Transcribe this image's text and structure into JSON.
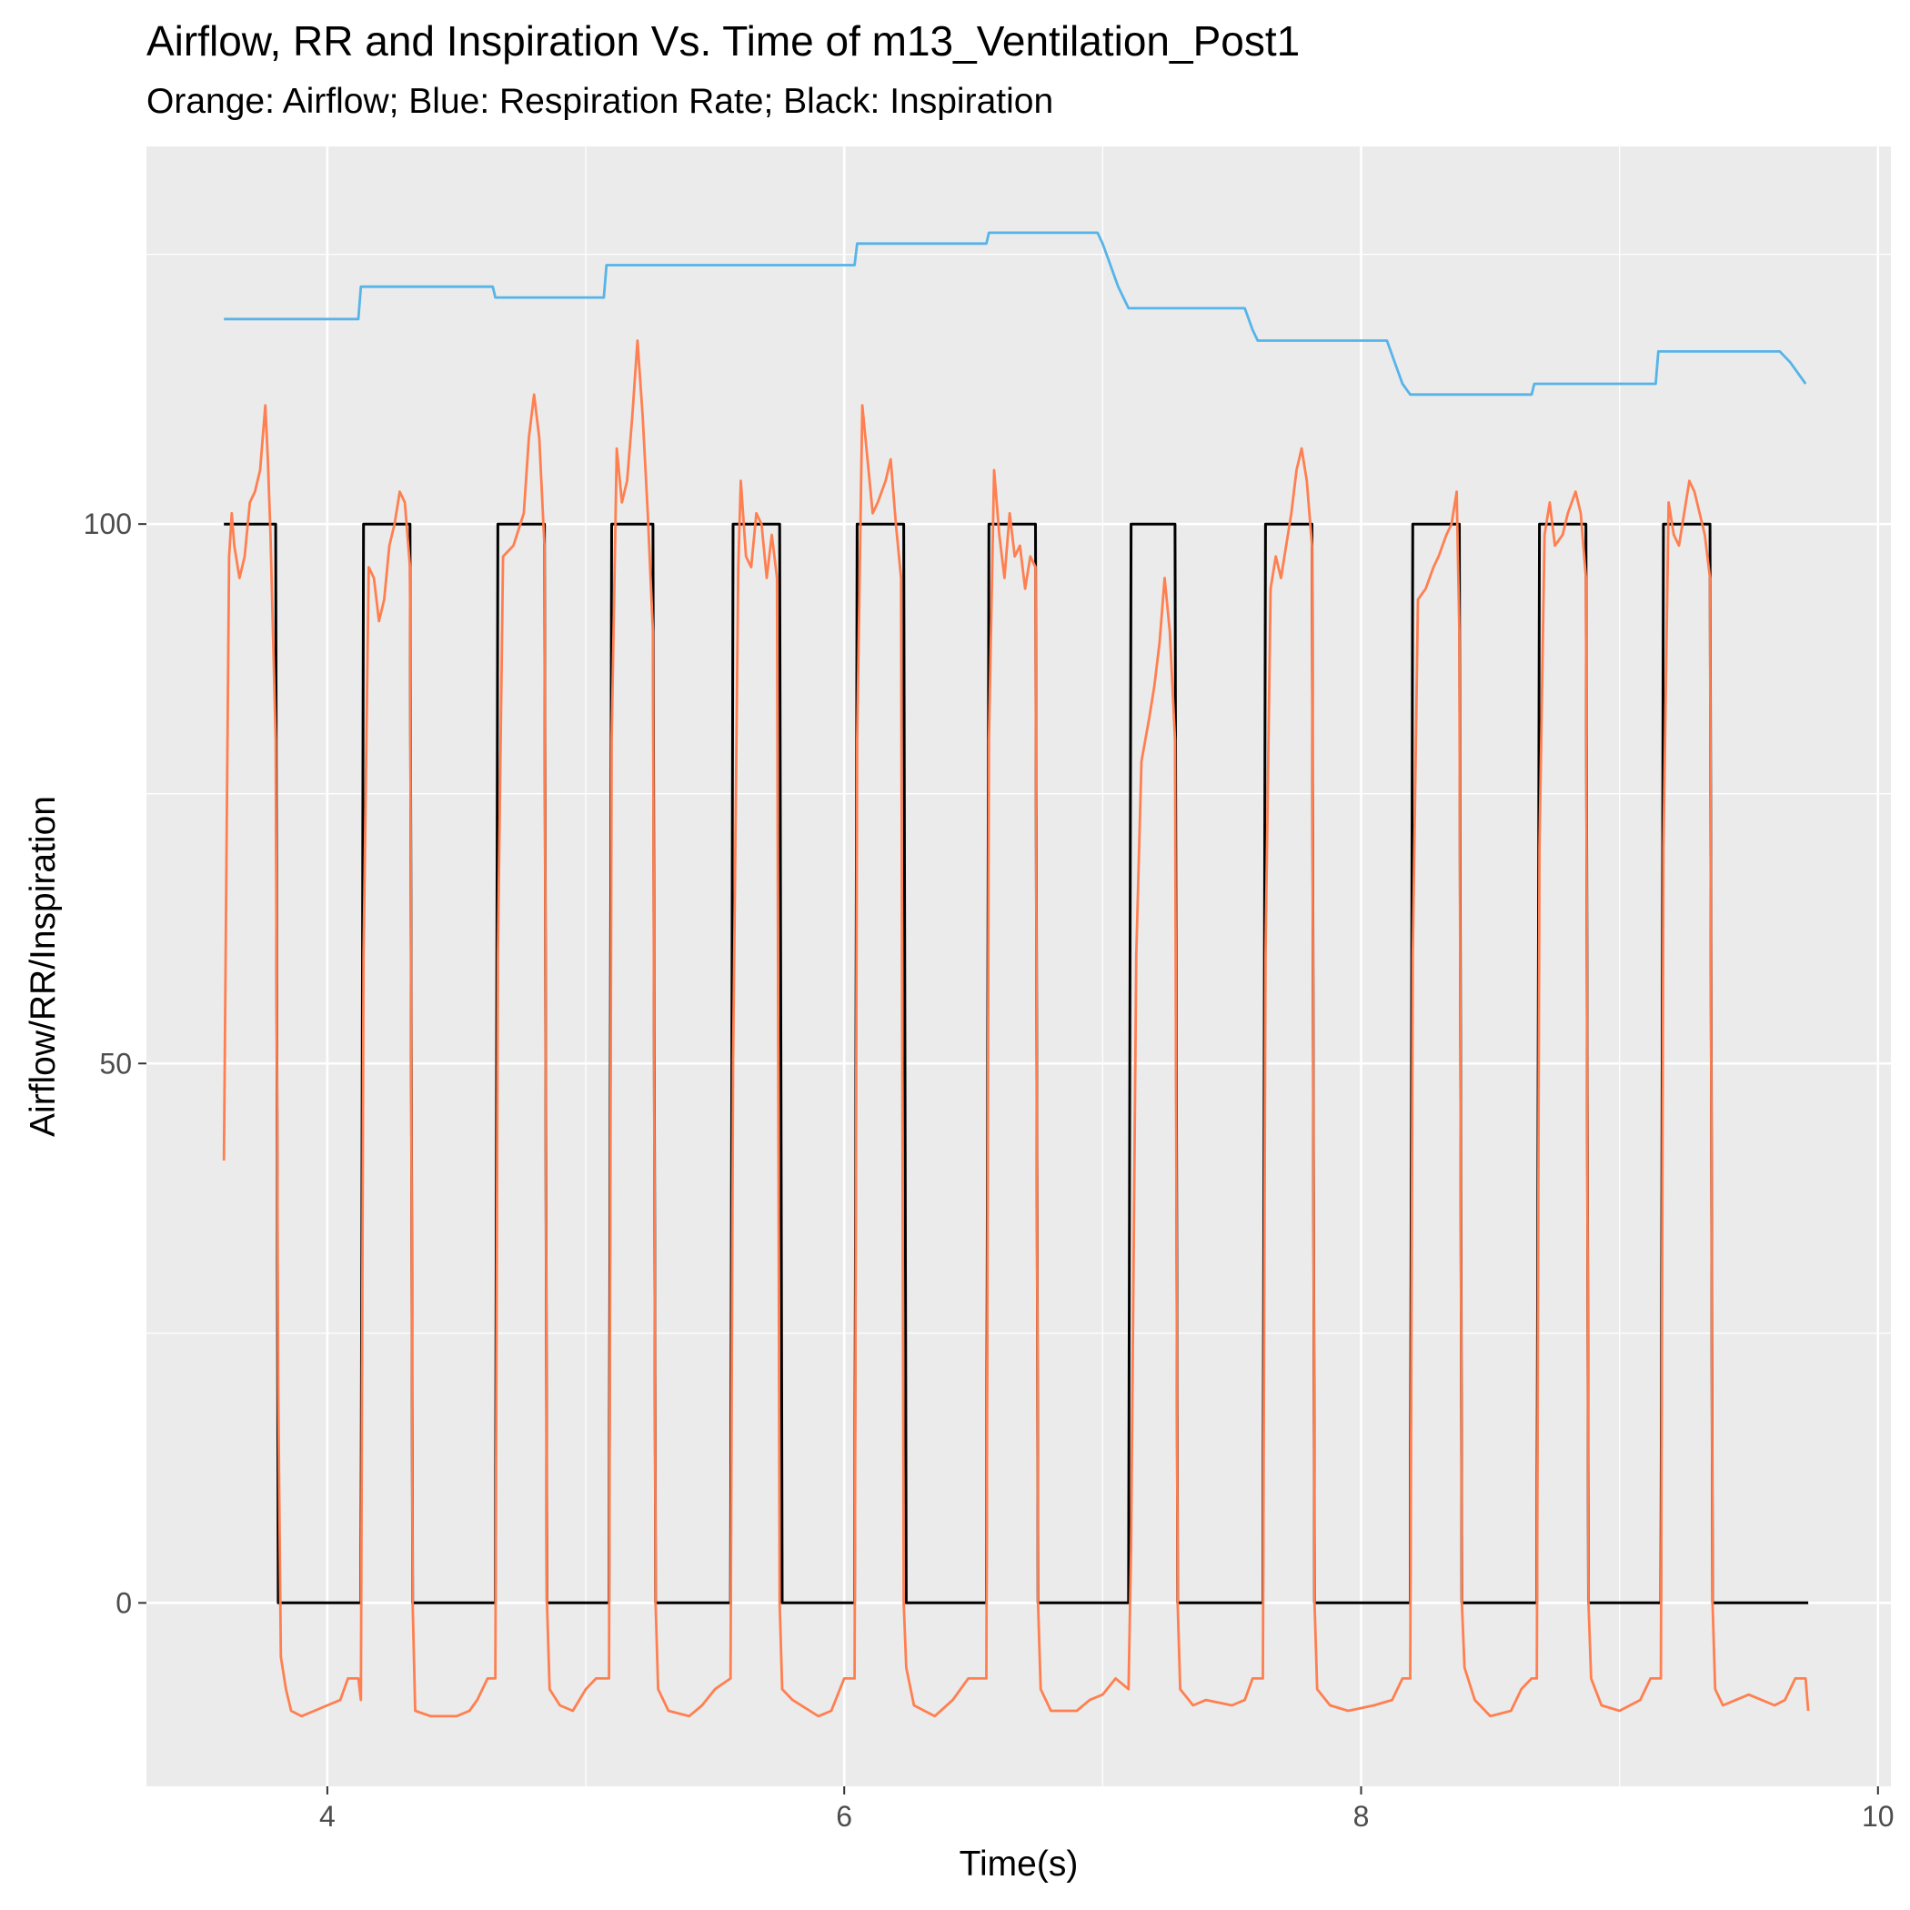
{
  "chart_data": {
    "type": "line",
    "title": "Airflow, RR and Inspiration Vs. Time  of  m13_Ventilation_Post1",
    "subtitle": "Orange: Airflow; Blue: Respiration Rate; Black: Inspiration",
    "xlabel": "Time(s)",
    "ylabel": "Airflow/RR/Inspiration",
    "xlim": [
      3.3,
      10.05
    ],
    "ylim": [
      -17,
      135
    ],
    "x_ticks": [
      4,
      6,
      8,
      10
    ],
    "x_tick_labels": [
      "4",
      "6",
      "8",
      "10"
    ],
    "y_ticks": [
      0,
      50,
      100
    ],
    "y_tick_labels": [
      "0",
      "50",
      "100"
    ],
    "grid": true,
    "colors": {
      "panel": "#ebebeb",
      "grid": "#ffffff",
      "airflow": "#ff7f50",
      "respiration_rate": "#56b4e9",
      "inspiration": "#000000"
    },
    "series": [
      {
        "key": "inspiration",
        "points": [
          [
            3.6,
            100
          ],
          [
            3.8,
            100
          ],
          [
            3.81,
            0
          ],
          [
            4.13,
            0
          ],
          [
            4.14,
            100
          ],
          [
            4.32,
            100
          ],
          [
            4.33,
            0
          ],
          [
            4.65,
            0
          ],
          [
            4.66,
            100
          ],
          [
            4.84,
            100
          ],
          [
            4.85,
            0
          ],
          [
            5.09,
            0
          ],
          [
            5.1,
            100
          ],
          [
            5.26,
            100
          ],
          [
            5.27,
            0
          ],
          [
            5.56,
            0
          ],
          [
            5.57,
            100
          ],
          [
            5.75,
            100
          ],
          [
            5.76,
            0
          ],
          [
            6.04,
            0
          ],
          [
            6.05,
            100
          ],
          [
            6.23,
            100
          ],
          [
            6.24,
            0
          ],
          [
            6.55,
            0
          ],
          [
            6.56,
            100
          ],
          [
            6.74,
            100
          ],
          [
            6.75,
            0
          ],
          [
            7.1,
            0
          ],
          [
            7.11,
            100
          ],
          [
            7.28,
            100
          ],
          [
            7.29,
            0
          ],
          [
            7.62,
            0
          ],
          [
            7.63,
            100
          ],
          [
            7.81,
            100
          ],
          [
            7.82,
            0
          ],
          [
            8.19,
            0
          ],
          [
            8.2,
            100
          ],
          [
            8.38,
            100
          ],
          [
            8.39,
            0
          ],
          [
            8.68,
            0
          ],
          [
            8.69,
            100
          ],
          [
            8.87,
            100
          ],
          [
            8.88,
            0
          ],
          [
            9.16,
            0
          ],
          [
            9.17,
            100
          ],
          [
            9.35,
            100
          ],
          [
            9.36,
            0
          ],
          [
            9.73,
            0
          ]
        ]
      },
      {
        "key": "respiration_rate",
        "points": [
          [
            3.6,
            119
          ],
          [
            4.12,
            119
          ],
          [
            4.13,
            122
          ],
          [
            4.64,
            122
          ],
          [
            4.65,
            121
          ],
          [
            5.07,
            121
          ],
          [
            5.08,
            124
          ],
          [
            6.04,
            124
          ],
          [
            6.05,
            126
          ],
          [
            6.55,
            126
          ],
          [
            6.56,
            127
          ],
          [
            6.98,
            127
          ],
          [
            7.0,
            126
          ],
          [
            7.03,
            124
          ],
          [
            7.06,
            122
          ],
          [
            7.1,
            120
          ],
          [
            7.55,
            120
          ],
          [
            7.58,
            118
          ],
          [
            7.6,
            117
          ],
          [
            8.1,
            117
          ],
          [
            8.13,
            115
          ],
          [
            8.16,
            113
          ],
          [
            8.19,
            112
          ],
          [
            8.66,
            112
          ],
          [
            8.67,
            113
          ],
          [
            9.14,
            113
          ],
          [
            9.15,
            116
          ],
          [
            9.62,
            116
          ],
          [
            9.66,
            115
          ],
          [
            9.69,
            114
          ],
          [
            9.72,
            113
          ]
        ]
      },
      {
        "key": "airflow",
        "points": [
          [
            3.6,
            41
          ],
          [
            3.61,
            70
          ],
          [
            3.62,
            97
          ],
          [
            3.63,
            101
          ],
          [
            3.64,
            98
          ],
          [
            3.66,
            95
          ],
          [
            3.68,
            97
          ],
          [
            3.7,
            102
          ],
          [
            3.72,
            103
          ],
          [
            3.74,
            105
          ],
          [
            3.76,
            111
          ],
          [
            3.77,
            106
          ],
          [
            3.78,
            99
          ],
          [
            3.8,
            80
          ],
          [
            3.81,
            20
          ],
          [
            3.82,
            -5
          ],
          [
            3.84,
            -8
          ],
          [
            3.86,
            -10
          ],
          [
            3.9,
            -10.5
          ],
          [
            3.95,
            -10
          ],
          [
            4.0,
            -9.5
          ],
          [
            4.05,
            -9
          ],
          [
            4.08,
            -7
          ],
          [
            4.12,
            -7
          ],
          [
            4.13,
            -9
          ],
          [
            4.14,
            60
          ],
          [
            4.16,
            96
          ],
          [
            4.18,
            95
          ],
          [
            4.2,
            91
          ],
          [
            4.22,
            93
          ],
          [
            4.24,
            98
          ],
          [
            4.26,
            100
          ],
          [
            4.28,
            103
          ],
          [
            4.3,
            102
          ],
          [
            4.32,
            96
          ],
          [
            4.33,
            0
          ],
          [
            4.34,
            -10
          ],
          [
            4.4,
            -10.5
          ],
          [
            4.5,
            -10.5
          ],
          [
            4.55,
            -10
          ],
          [
            4.58,
            -9
          ],
          [
            4.62,
            -7
          ],
          [
            4.65,
            -7
          ],
          [
            4.66,
            60
          ],
          [
            4.68,
            97
          ],
          [
            4.72,
            98
          ],
          [
            4.76,
            101
          ],
          [
            4.78,
            108
          ],
          [
            4.8,
            112
          ],
          [
            4.82,
            108
          ],
          [
            4.84,
            98
          ],
          [
            4.85,
            0
          ],
          [
            4.86,
            -8
          ],
          [
            4.9,
            -9.5
          ],
          [
            4.95,
            -10
          ],
          [
            5.0,
            -8
          ],
          [
            5.04,
            -7
          ],
          [
            5.09,
            -7
          ],
          [
            5.1,
            80
          ],
          [
            5.12,
            107
          ],
          [
            5.14,
            102
          ],
          [
            5.16,
            104
          ],
          [
            5.18,
            110
          ],
          [
            5.2,
            117
          ],
          [
            5.22,
            110
          ],
          [
            5.24,
            101
          ],
          [
            5.26,
            90
          ],
          [
            5.27,
            0
          ],
          [
            5.28,
            -8
          ],
          [
            5.32,
            -10
          ],
          [
            5.4,
            -10.5
          ],
          [
            5.45,
            -9.5
          ],
          [
            5.5,
            -8
          ],
          [
            5.56,
            -7
          ],
          [
            5.57,
            50
          ],
          [
            5.59,
            96
          ],
          [
            5.6,
            104
          ],
          [
            5.62,
            97
          ],
          [
            5.64,
            96
          ],
          [
            5.66,
            101
          ],
          [
            5.68,
            100
          ],
          [
            5.7,
            95
          ],
          [
            5.72,
            99
          ],
          [
            5.74,
            95
          ],
          [
            5.75,
            0
          ],
          [
            5.76,
            -8
          ],
          [
            5.8,
            -9
          ],
          [
            5.9,
            -10.5
          ],
          [
            5.95,
            -10
          ],
          [
            6.0,
            -7
          ],
          [
            6.04,
            -7
          ],
          [
            6.05,
            80
          ],
          [
            6.07,
            111
          ],
          [
            6.09,
            106
          ],
          [
            6.11,
            101
          ],
          [
            6.13,
            102
          ],
          [
            6.16,
            104
          ],
          [
            6.18,
            106
          ],
          [
            6.2,
            100
          ],
          [
            6.22,
            95
          ],
          [
            6.23,
            0
          ],
          [
            6.24,
            -6
          ],
          [
            6.27,
            -9.5
          ],
          [
            6.35,
            -10.5
          ],
          [
            6.42,
            -9
          ],
          [
            6.48,
            -7
          ],
          [
            6.55,
            -7
          ],
          [
            6.56,
            80
          ],
          [
            6.58,
            105
          ],
          [
            6.6,
            99
          ],
          [
            6.62,
            95
          ],
          [
            6.64,
            101
          ],
          [
            6.66,
            97
          ],
          [
            6.68,
            98
          ],
          [
            6.7,
            94
          ],
          [
            6.72,
            97
          ],
          [
            6.74,
            96
          ],
          [
            6.75,
            0
          ],
          [
            6.76,
            -8
          ],
          [
            6.8,
            -10
          ],
          [
            6.9,
            -10
          ],
          [
            6.95,
            -9
          ],
          [
            7.0,
            -8.5
          ],
          [
            7.05,
            -7
          ],
          [
            7.1,
            -8
          ],
          [
            7.11,
            5
          ],
          [
            7.13,
            60
          ],
          [
            7.15,
            78
          ],
          [
            7.18,
            82
          ],
          [
            7.2,
            85
          ],
          [
            7.22,
            89
          ],
          [
            7.24,
            95
          ],
          [
            7.26,
            90
          ],
          [
            7.28,
            80
          ],
          [
            7.29,
            0
          ],
          [
            7.3,
            -8
          ],
          [
            7.35,
            -9.5
          ],
          [
            7.4,
            -9
          ],
          [
            7.5,
            -9.5
          ],
          [
            7.55,
            -9
          ],
          [
            7.58,
            -7
          ],
          [
            7.62,
            -7
          ],
          [
            7.63,
            60
          ],
          [
            7.65,
            94
          ],
          [
            7.67,
            97
          ],
          [
            7.69,
            95
          ],
          [
            7.71,
            98
          ],
          [
            7.73,
            101
          ],
          [
            7.75,
            105
          ],
          [
            7.77,
            107
          ],
          [
            7.79,
            104
          ],
          [
            7.81,
            98
          ],
          [
            7.82,
            0
          ],
          [
            7.83,
            -8
          ],
          [
            7.88,
            -9.5
          ],
          [
            7.95,
            -10
          ],
          [
            8.05,
            -9.5
          ],
          [
            8.12,
            -9
          ],
          [
            8.16,
            -7
          ],
          [
            8.19,
            -7
          ],
          [
            8.2,
            60
          ],
          [
            8.22,
            93
          ],
          [
            8.25,
            94
          ],
          [
            8.28,
            96
          ],
          [
            8.3,
            97
          ],
          [
            8.33,
            99
          ],
          [
            8.35,
            100
          ],
          [
            8.37,
            103
          ],
          [
            8.38,
            90
          ],
          [
            8.39,
            0
          ],
          [
            8.4,
            -6
          ],
          [
            8.44,
            -9
          ],
          [
            8.5,
            -10.5
          ],
          [
            8.58,
            -10
          ],
          [
            8.62,
            -8
          ],
          [
            8.66,
            -7
          ],
          [
            8.68,
            -7
          ],
          [
            8.69,
            70
          ],
          [
            8.71,
            99
          ],
          [
            8.73,
            102
          ],
          [
            8.75,
            98
          ],
          [
            8.78,
            99
          ],
          [
            8.8,
            101
          ],
          [
            8.83,
            103
          ],
          [
            8.85,
            101
          ],
          [
            8.87,
            95
          ],
          [
            8.88,
            0
          ],
          [
            8.89,
            -7
          ],
          [
            8.93,
            -9.5
          ],
          [
            9.0,
            -10
          ],
          [
            9.08,
            -9
          ],
          [
            9.12,
            -7
          ],
          [
            9.16,
            -7
          ],
          [
            9.17,
            70
          ],
          [
            9.19,
            102
          ],
          [
            9.21,
            99
          ],
          [
            9.23,
            98
          ],
          [
            9.25,
            101
          ],
          [
            9.27,
            104
          ],
          [
            9.29,
            103
          ],
          [
            9.31,
            101
          ],
          [
            9.33,
            99
          ],
          [
            9.35,
            95
          ],
          [
            9.36,
            0
          ],
          [
            9.37,
            -8
          ],
          [
            9.4,
            -9.5
          ],
          [
            9.45,
            -9
          ],
          [
            9.5,
            -8.5
          ],
          [
            9.55,
            -9
          ],
          [
            9.6,
            -9.5
          ],
          [
            9.64,
            -9
          ],
          [
            9.68,
            -7
          ],
          [
            9.72,
            -7
          ],
          [
            9.73,
            -10
          ]
        ]
      }
    ]
  }
}
